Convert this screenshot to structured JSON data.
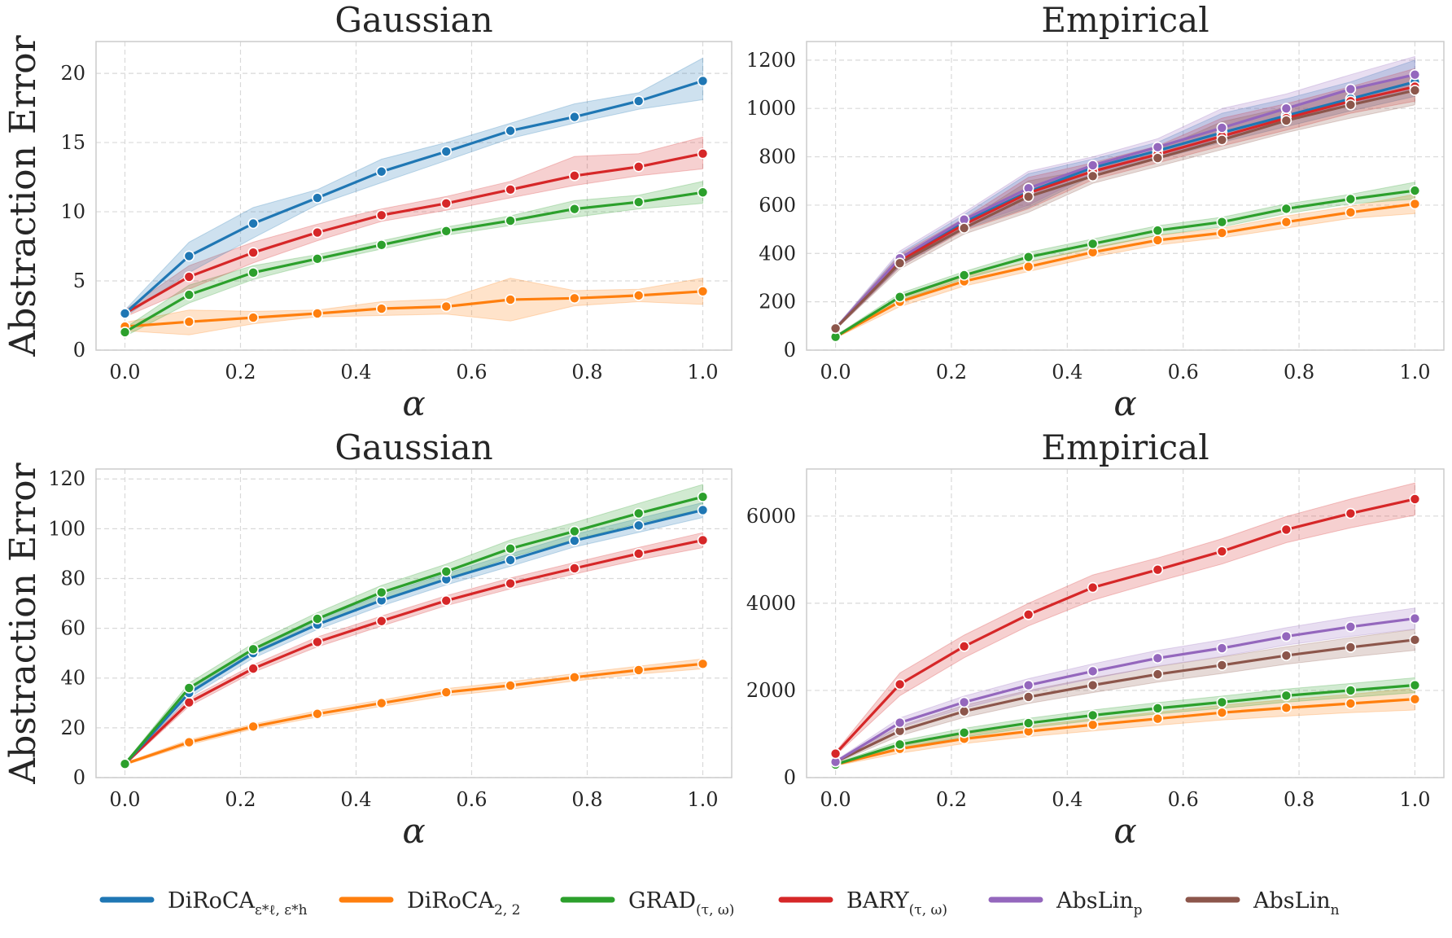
{
  "legend": [
    {
      "key": "diroca_eps",
      "base": "DiRoCA",
      "sub": "ε*ℓ, ε*h",
      "color": "#1f77b4"
    },
    {
      "key": "diroca_22",
      "base": "DiRoCA",
      "sub": "2, 2",
      "color": "#ff7f0e"
    },
    {
      "key": "grad",
      "base": "GRAD",
      "sub": "(τ, ω)",
      "color": "#2ca02c"
    },
    {
      "key": "bary",
      "base": "BARY",
      "sub": "(τ, ω)",
      "color": "#d62728"
    },
    {
      "key": "abslin_p",
      "base": "AbsLin",
      "sub": "p",
      "color": "#9467bd"
    },
    {
      "key": "abslin_n",
      "base": "AbsLin",
      "sub": "n",
      "color": "#8c564b"
    }
  ],
  "chart_data": [
    {
      "type": "line",
      "title": "Gaussian",
      "xlabel": "α",
      "ylabel": "Abstraction Error",
      "xlim": [
        -0.05,
        1.05
      ],
      "ylim": [
        0,
        22.3
      ],
      "xticks": [
        0.0,
        0.2,
        0.4,
        0.6,
        0.8,
        1.0
      ],
      "xtick_labels": [
        "0.0",
        "0.2",
        "0.4",
        "0.6",
        "0.8",
        "1.0"
      ],
      "yticks": [
        0,
        5,
        10,
        15,
        20
      ],
      "ytick_labels": [
        "0",
        "5",
        "10",
        "15",
        "20"
      ],
      "x": [
        0.0,
        0.111,
        0.222,
        0.333,
        0.444,
        0.556,
        0.667,
        0.778,
        0.889,
        1.0
      ],
      "series": [
        {
          "key": "diroca_22",
          "values": [
            1.7,
            2.05,
            2.35,
            2.65,
            3.0,
            3.15,
            3.65,
            3.75,
            3.95,
            4.25
          ],
          "lower": [
            1.4,
            1.1,
            1.9,
            2.4,
            2.5,
            2.6,
            2.1,
            3.2,
            3.5,
            3.3
          ],
          "upper": [
            2.0,
            2.9,
            2.8,
            2.9,
            3.5,
            3.7,
            5.2,
            4.3,
            4.4,
            5.2
          ]
        },
        {
          "key": "grad",
          "values": [
            1.3,
            4.0,
            5.6,
            6.6,
            7.6,
            8.6,
            9.35,
            10.2,
            10.7,
            11.4
          ],
          "lower": [
            1.0,
            3.4,
            5.1,
            6.3,
            7.3,
            8.3,
            9.0,
            9.6,
            10.2,
            10.6
          ],
          "upper": [
            1.6,
            4.7,
            6.1,
            6.9,
            7.9,
            8.9,
            9.7,
            10.8,
            11.2,
            12.2
          ]
        },
        {
          "key": "bary",
          "values": [
            2.65,
            5.3,
            7.05,
            8.5,
            9.75,
            10.6,
            11.6,
            12.6,
            13.25,
            14.2
          ],
          "lower": [
            2.4,
            4.4,
            6.3,
            7.9,
            9.3,
            10.1,
            11.0,
            11.9,
            12.6,
            13.1
          ],
          "upper": [
            2.9,
            6.1,
            7.8,
            9.1,
            10.2,
            11.1,
            12.2,
            14.0,
            14.2,
            15.4
          ]
        },
        {
          "key": "diroca_eps",
          "values": [
            2.65,
            6.8,
            9.15,
            11.0,
            12.9,
            14.35,
            15.85,
            16.85,
            18.0,
            19.45
          ],
          "lower": [
            2.4,
            5.6,
            8.1,
            10.5,
            12.1,
            13.7,
            15.3,
            16.4,
            17.4,
            18.1
          ],
          "upper": [
            2.9,
            7.8,
            10.3,
            11.6,
            13.8,
            15.0,
            16.4,
            17.8,
            18.6,
            21.1
          ]
        }
      ]
    },
    {
      "type": "line",
      "title": "Empirical",
      "xlabel": "α",
      "ylabel": "",
      "xlim": [
        -0.05,
        1.05
      ],
      "ylim": [
        0,
        1277
      ],
      "xticks": [
        0.0,
        0.2,
        0.4,
        0.6,
        0.8,
        1.0
      ],
      "xtick_labels": [
        "0.0",
        "0.2",
        "0.4",
        "0.6",
        "0.8",
        "1.0"
      ],
      "yticks": [
        0,
        200,
        400,
        600,
        800,
        1000,
        1200
      ],
      "ytick_labels": [
        "0",
        "200",
        "400",
        "600",
        "800",
        "1000",
        "1200"
      ],
      "x": [
        0.0,
        0.111,
        0.222,
        0.333,
        0.444,
        0.556,
        0.667,
        0.778,
        0.889,
        1.0
      ],
      "series": [
        {
          "key": "diroca_22",
          "values": [
            55,
            200,
            285,
            345,
            405,
            455,
            485,
            530,
            570,
            605
          ],
          "lower": [
            50,
            180,
            265,
            325,
            385,
            435,
            465,
            505,
            545,
            565
          ],
          "upper": [
            60,
            220,
            305,
            365,
            425,
            475,
            505,
            555,
            595,
            645
          ]
        },
        {
          "key": "grad",
          "values": [
            55,
            220,
            310,
            385,
            440,
            495,
            530,
            585,
            625,
            660
          ],
          "lower": [
            50,
            205,
            295,
            365,
            420,
            475,
            510,
            565,
            605,
            625
          ],
          "upper": [
            60,
            235,
            325,
            405,
            460,
            515,
            550,
            605,
            645,
            695
          ]
        },
        {
          "key": "diroca_eps",
          "values": [
            90,
            375,
            530,
            655,
            755,
            825,
            900,
            970,
            1040,
            1110
          ],
          "lower": [
            85,
            345,
            500,
            590,
            720,
            790,
            860,
            925,
            990,
            1050
          ],
          "upper": [
            95,
            400,
            560,
            730,
            790,
            860,
            980,
            1040,
            1110,
            1200
          ]
        },
        {
          "key": "bary",
          "values": [
            90,
            370,
            520,
            650,
            740,
            810,
            885,
            960,
            1030,
            1090
          ],
          "lower": [
            85,
            345,
            495,
            585,
            705,
            775,
            845,
            910,
            980,
            1030
          ],
          "upper": [
            95,
            395,
            545,
            715,
            775,
            845,
            960,
            1020,
            1090,
            1165
          ]
        },
        {
          "key": "abslin_p",
          "values": [
            90,
            380,
            540,
            670,
            765,
            840,
            920,
            1000,
            1080,
            1140
          ],
          "lower": [
            85,
            350,
            510,
            600,
            730,
            805,
            875,
            950,
            1025,
            1070
          ],
          "upper": [
            95,
            410,
            570,
            740,
            800,
            875,
            1000,
            1060,
            1140,
            1215
          ]
        },
        {
          "key": "abslin_n",
          "values": [
            90,
            360,
            505,
            635,
            720,
            795,
            870,
            950,
            1015,
            1075
          ],
          "lower": [
            85,
            335,
            480,
            570,
            690,
            760,
            830,
            900,
            960,
            1015
          ],
          "upper": [
            95,
            385,
            530,
            700,
            750,
            830,
            945,
            1005,
            1075,
            1140
          ]
        }
      ]
    },
    {
      "type": "line",
      "title": "Gaussian",
      "xlabel": "α",
      "ylabel": "Abstraction Error",
      "xlim": [
        -0.05,
        1.05
      ],
      "ylim": [
        0,
        124
      ],
      "xticks": [
        0.0,
        0.2,
        0.4,
        0.6,
        0.8,
        1.0
      ],
      "xtick_labels": [
        "0.0",
        "0.2",
        "0.4",
        "0.6",
        "0.8",
        "1.0"
      ],
      "yticks": [
        0,
        20,
        40,
        60,
        80,
        100,
        120
      ],
      "ytick_labels": [
        "0",
        "20",
        "40",
        "60",
        "80",
        "100",
        "120"
      ],
      "x": [
        0.0,
        0.111,
        0.222,
        0.333,
        0.444,
        0.556,
        0.667,
        0.778,
        0.889,
        1.0
      ],
      "series": [
        {
          "key": "diroca_22",
          "values": [
            5.5,
            14.2,
            20.5,
            25.6,
            29.9,
            34.3,
            37.0,
            40.3,
            43.2,
            45.7
          ],
          "lower": [
            5.0,
            13.2,
            19.5,
            24.3,
            28.6,
            32.8,
            35.5,
            38.8,
            41.6,
            43.7
          ],
          "upper": [
            6.0,
            15.2,
            21.5,
            26.9,
            31.2,
            35.8,
            38.5,
            41.8,
            44.8,
            47.7
          ]
        },
        {
          "key": "bary",
          "values": [
            5.5,
            30.2,
            43.8,
            54.5,
            62.9,
            71.1,
            78.0,
            84.1,
            90.0,
            95.4
          ],
          "lower": [
            5.0,
            28.7,
            42.3,
            52.5,
            60.9,
            69.1,
            75.8,
            81.8,
            87.5,
            92.4
          ],
          "upper": [
            6.0,
            31.7,
            45.3,
            56.5,
            64.9,
            73.1,
            80.2,
            86.4,
            92.5,
            98.4
          ]
        },
        {
          "key": "diroca_eps",
          "values": [
            5.5,
            34.0,
            50.0,
            61.5,
            71.2,
            79.7,
            87.4,
            95.2,
            101.3,
            107.5
          ],
          "lower": [
            5.0,
            32.2,
            48.0,
            59.5,
            69.0,
            77.4,
            84.9,
            92.7,
            98.5,
            104.5
          ],
          "upper": [
            6.0,
            35.8,
            52.0,
            63.5,
            73.4,
            82.0,
            89.9,
            97.7,
            104.1,
            110.5
          ]
        },
        {
          "key": "grad",
          "values": [
            5.5,
            36.0,
            51.6,
            63.8,
            74.4,
            82.8,
            92.0,
            99.0,
            106.2,
            112.8
          ],
          "lower": [
            5.0,
            34.0,
            49.3,
            61.3,
            71.6,
            79.8,
            88.5,
            95.5,
            102.2,
            107.8
          ],
          "upper": [
            6.0,
            38.0,
            53.9,
            66.3,
            77.2,
            85.8,
            95.5,
            102.5,
            110.2,
            117.8
          ]
        }
      ]
    },
    {
      "type": "line",
      "title": "Empirical",
      "xlabel": "α",
      "ylabel": "",
      "xlim": [
        -0.05,
        1.05
      ],
      "ylim": [
        0,
        7080
      ],
      "xticks": [
        0.0,
        0.2,
        0.4,
        0.6,
        0.8,
        1.0
      ],
      "xtick_labels": [
        "0.0",
        "0.2",
        "0.4",
        "0.6",
        "0.8",
        "1.0"
      ],
      "yticks": [
        0,
        2000,
        4000,
        6000
      ],
      "ytick_labels": [
        "0",
        "2000",
        "4000",
        "6000"
      ],
      "x": [
        0.0,
        0.111,
        0.222,
        0.333,
        0.444,
        0.556,
        0.667,
        0.778,
        0.889,
        1.0
      ],
      "series": [
        {
          "key": "diroca_22",
          "values": [
            300,
            660,
            890,
            1060,
            1210,
            1350,
            1490,
            1600,
            1700,
            1800
          ],
          "lower": [
            270,
            560,
            780,
            940,
            1070,
            1200,
            1320,
            1410,
            1490,
            1550
          ],
          "upper": [
            330,
            760,
            1000,
            1180,
            1350,
            1500,
            1660,
            1790,
            1910,
            2050
          ]
        },
        {
          "key": "grad",
          "values": [
            300,
            760,
            1030,
            1250,
            1430,
            1590,
            1730,
            1880,
            2000,
            2120
          ],
          "lower": [
            270,
            680,
            930,
            1140,
            1310,
            1460,
            1590,
            1730,
            1840,
            1950
          ],
          "upper": [
            330,
            840,
            1130,
            1360,
            1550,
            1720,
            1870,
            2030,
            2160,
            2290
          ]
        },
        {
          "key": "abslin_n",
          "values": [
            360,
            1070,
            1520,
            1850,
            2120,
            2370,
            2580,
            2800,
            2990,
            3160
          ],
          "lower": [
            330,
            960,
            1380,
            1700,
            1950,
            2190,
            2390,
            2600,
            2770,
            2920
          ],
          "upper": [
            390,
            1180,
            1660,
            2000,
            2290,
            2550,
            2770,
            3000,
            3210,
            3400
          ]
        },
        {
          "key": "abslin_p",
          "values": [
            360,
            1260,
            1730,
            2120,
            2440,
            2740,
            2970,
            3240,
            3460,
            3650
          ],
          "lower": [
            330,
            1150,
            1590,
            1970,
            2270,
            2560,
            2780,
            3040,
            3240,
            3410
          ],
          "upper": [
            390,
            1370,
            1870,
            2270,
            2610,
            2920,
            3160,
            3440,
            3680,
            3890
          ]
        },
        {
          "key": "bary",
          "values": [
            550,
            2140,
            3010,
            3740,
            4360,
            4770,
            5190,
            5690,
            6060,
            6390
          ],
          "lower": [
            510,
            1880,
            2750,
            3480,
            4070,
            4500,
            4900,
            5390,
            5730,
            6020
          ],
          "upper": [
            590,
            2400,
            3270,
            4000,
            4650,
            5040,
            5480,
            5990,
            6390,
            6760
          ]
        }
      ]
    }
  ]
}
